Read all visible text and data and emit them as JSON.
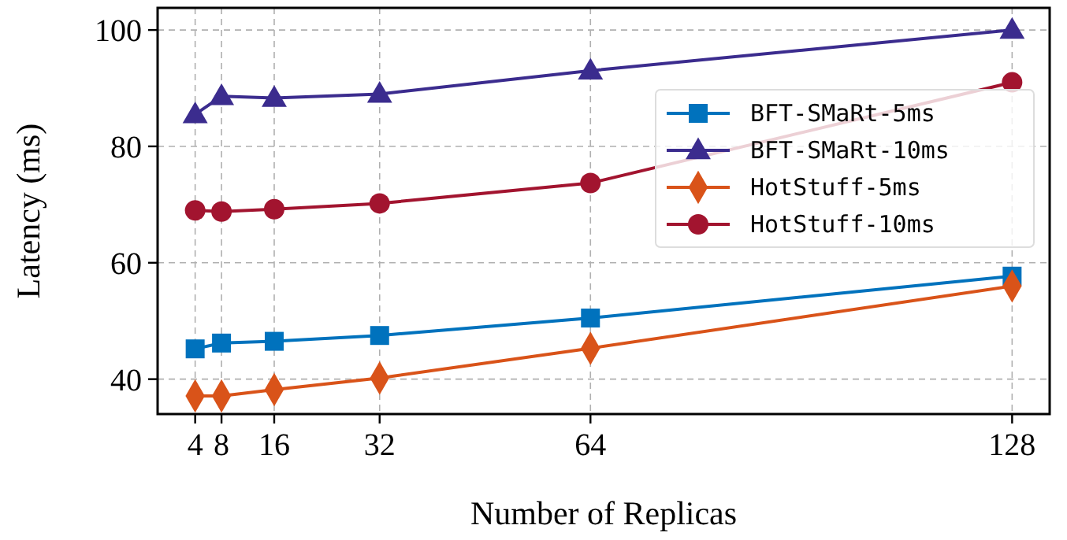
{
  "chart_data": {
    "type": "line",
    "xlabel": "Number of Replicas",
    "ylabel": "Latency (ms)",
    "x": [
      4,
      8,
      16,
      32,
      64,
      128
    ],
    "xlim": [
      -1.7,
      133.7
    ],
    "xticks": [
      4,
      8,
      16,
      32,
      64,
      128
    ],
    "ylim": [
      34,
      103.8
    ],
    "yticks": [
      40,
      60,
      80,
      100
    ],
    "grid": true,
    "legend": "right",
    "line_style": "solid",
    "series": [
      {
        "name": "BFT-SMaRt-5ms",
        "color": "#0072bd",
        "marker": "square",
        "values": [
          45.2,
          46.2,
          46.5,
          47.5,
          50.5,
          57.7
        ]
      },
      {
        "name": "BFT-SMaRt-10ms",
        "color": "#3b2c8e",
        "marker": "triangle",
        "values": [
          85.5,
          88.6,
          88.3,
          89.0,
          93.0,
          100
        ]
      },
      {
        "name": "HotStuff-5ms",
        "color": "#d95319",
        "marker": "diamond",
        "values": [
          37.1,
          37.1,
          38.2,
          40.2,
          45.3,
          56
        ]
      },
      {
        "name": "HotStuff-10ms",
        "color": "#a2142f",
        "marker": "circle",
        "values": [
          69,
          68.8,
          69.2,
          70.2,
          73.7,
          91
        ]
      }
    ]
  }
}
